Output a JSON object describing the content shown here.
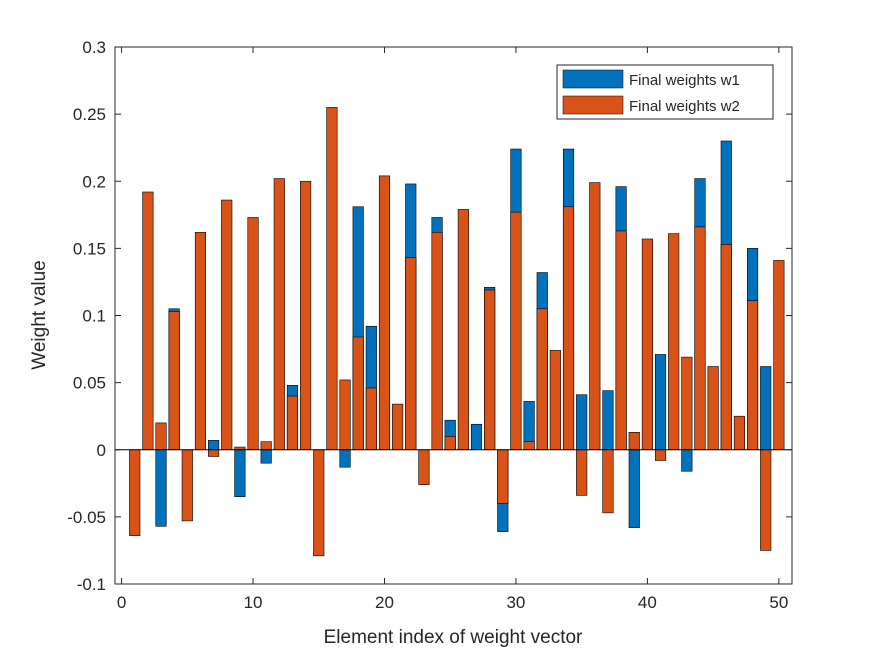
{
  "chart_data": {
    "type": "bar",
    "title": "",
    "xlabel": "Element index of weight vector",
    "ylabel": "Weight value",
    "xlim": [
      -0.5,
      51
    ],
    "ylim": [
      -0.1,
      0.3
    ],
    "xticks": [
      0,
      10,
      20,
      30,
      40,
      50
    ],
    "yticks": [
      -0.1,
      -0.05,
      0,
      0.05,
      0.1,
      0.15,
      0.2,
      0.25,
      0.3
    ],
    "ytick_labels": [
      "-0.1",
      "-0.05",
      "0",
      "0.05",
      "0.1",
      "0.15",
      "0.2",
      "0.25",
      "0.3"
    ],
    "grid": false,
    "legend_position": "top-right",
    "x": [
      1,
      2,
      3,
      4,
      5,
      6,
      7,
      8,
      9,
      10,
      11,
      12,
      13,
      14,
      15,
      16,
      17,
      18,
      19,
      20,
      21,
      22,
      23,
      24,
      25,
      26,
      27,
      28,
      29,
      30,
      31,
      32,
      33,
      34,
      35,
      36,
      37,
      38,
      39,
      40,
      41,
      42,
      43,
      44,
      45,
      46,
      47,
      48,
      49,
      50
    ],
    "series": [
      {
        "name": "Final weights w1",
        "color": "#0072BD",
        "values": [
          0,
          0,
          -0.057,
          0.105,
          0,
          0,
          0.007,
          0,
          -0.035,
          0,
          -0.01,
          0,
          0.048,
          0,
          0,
          0,
          -0.013,
          0.181,
          0.092,
          0,
          0,
          0.198,
          0,
          0.173,
          0.022,
          0,
          0.019,
          0.121,
          -0.061,
          0.224,
          0.036,
          0.132,
          0,
          0.224,
          0.041,
          0,
          0.044,
          0.196,
          -0.058,
          0,
          0.071,
          0,
          -0.016,
          0.202,
          0,
          0.23,
          0,
          0.15,
          0.062,
          0
        ]
      },
      {
        "name": "Final weights w2",
        "color": "#D95319",
        "values": [
          -0.064,
          0.192,
          0.02,
          0.103,
          -0.053,
          0.162,
          -0.005,
          0.186,
          0.002,
          0.173,
          0.006,
          0.202,
          0.04,
          0.2,
          -0.079,
          0.255,
          0.052,
          0.084,
          0.046,
          0.204,
          0.034,
          0.143,
          -0.026,
          0.162,
          0.01,
          0.179,
          0,
          0.119,
          -0.04,
          0.177,
          0.006,
          0.105,
          0.074,
          0.181,
          -0.034,
          0.199,
          -0.047,
          0.163,
          0.013,
          0.157,
          -0.008,
          0.161,
          0.069,
          0.166,
          0.062,
          0.153,
          0.025,
          0.111,
          -0.075,
          0.141
        ]
      }
    ]
  }
}
